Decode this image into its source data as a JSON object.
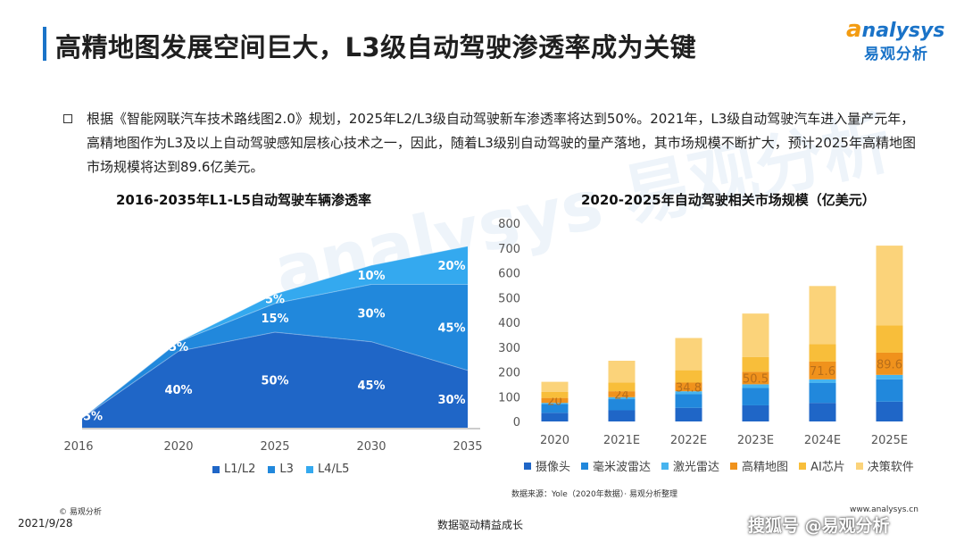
{
  "page": {
    "title": "高精地图发展空间巨大，L3级自动驾驶渗透率成为关键",
    "description": "根据《智能网联汽车技术路线图2.0》规划，2025年L2/L3级自动驾驶新车渗透率将达到50%。2021年，L3级自动驾驶汽车进入量产元年，高精地图作为L3及以上自动驾驶感知层核心技术之一，因此，随着L3级别自动驾驶的量产落地，其市场规模不断扩大，预计2025年高精地图市场规模将达到89.6亿美元。"
  },
  "logo": {
    "en_first": "a",
    "en_rest": "nalysys",
    "cn": "易观分析"
  },
  "watermark_bg": "analysys 易观分析",
  "footer": {
    "source": "数据来源：Yole（2020年数据）· 易观分析整理",
    "copyright": "©  易观分析",
    "date": "2021/9/28",
    "slogan": "数据驱动精益成长",
    "site": "www.analysys.cn",
    "watermark": "搜狐号 @易观分析"
  },
  "colors": {
    "accent": "#1a73c8",
    "brand_orange": "#f39c12"
  },
  "chart_data": [
    {
      "type": "area",
      "title": "2016-2035年L1-L5自动驾驶车辆渗透率",
      "x": [
        "2016",
        "2020",
        "2025",
        "2030",
        "2035"
      ],
      "series": [
        {
          "name": "L1/L2",
          "color": "#1f66c7",
          "values": [
            5,
            40,
            50,
            45,
            30
          ],
          "labels": [
            "5%",
            "40%",
            "50%",
            "45%",
            "30%"
          ]
        },
        {
          "name": "L3",
          "color": "#2188dc",
          "values": [
            0,
            5,
            15,
            30,
            45
          ],
          "labels": [
            "",
            "5%",
            "15%",
            "30%",
            "45%"
          ]
        },
        {
          "name": "L4/L5",
          "color": "#34a9ef",
          "values": [
            0,
            0,
            5,
            10,
            20
          ],
          "labels": [
            "",
            "",
            "5%",
            "10%",
            "20%"
          ]
        }
      ],
      "ylim": [
        0,
        100
      ]
    },
    {
      "type": "bar",
      "stacked": true,
      "title": "2020-2025年自动驾驶相关市场规模（亿美元）",
      "categories": [
        "2020",
        "2021E",
        "2022E",
        "2023E",
        "2024E",
        "2025E"
      ],
      "ylim": [
        0,
        800
      ],
      "yticks": [
        0,
        100,
        200,
        300,
        400,
        500,
        600,
        700,
        800
      ],
      "series": [
        {
          "name": "摄像头",
          "color": "#1f66c7",
          "values": [
            35,
            45,
            55,
            65,
            75,
            80
          ]
        },
        {
          "name": "毫米波雷达",
          "color": "#2188dc",
          "values": [
            35,
            45,
            55,
            70,
            80,
            90
          ]
        },
        {
          "name": "激光雷达",
          "color": "#47b4ef",
          "values": [
            5,
            8,
            12,
            15,
            15,
            18
          ]
        },
        {
          "name": "高精地图",
          "color": "#f0921c",
          "values": [
            20,
            24,
            34.8,
            50.5,
            71.6,
            89.6
          ]
        },
        {
          "name": "AI芯片",
          "color": "#f8be3a",
          "values": [
            25,
            35,
            50,
            60,
            70,
            110
          ]
        },
        {
          "name": "决策软件",
          "color": "#fbd37a",
          "values": [
            40,
            88,
            130,
            175,
            235,
            322
          ]
        }
      ],
      "annotations": {
        "series": "高精地图",
        "labels": [
          "20",
          "24",
          "34.8",
          "50.5",
          "71.6",
          "89.6"
        ]
      }
    }
  ]
}
